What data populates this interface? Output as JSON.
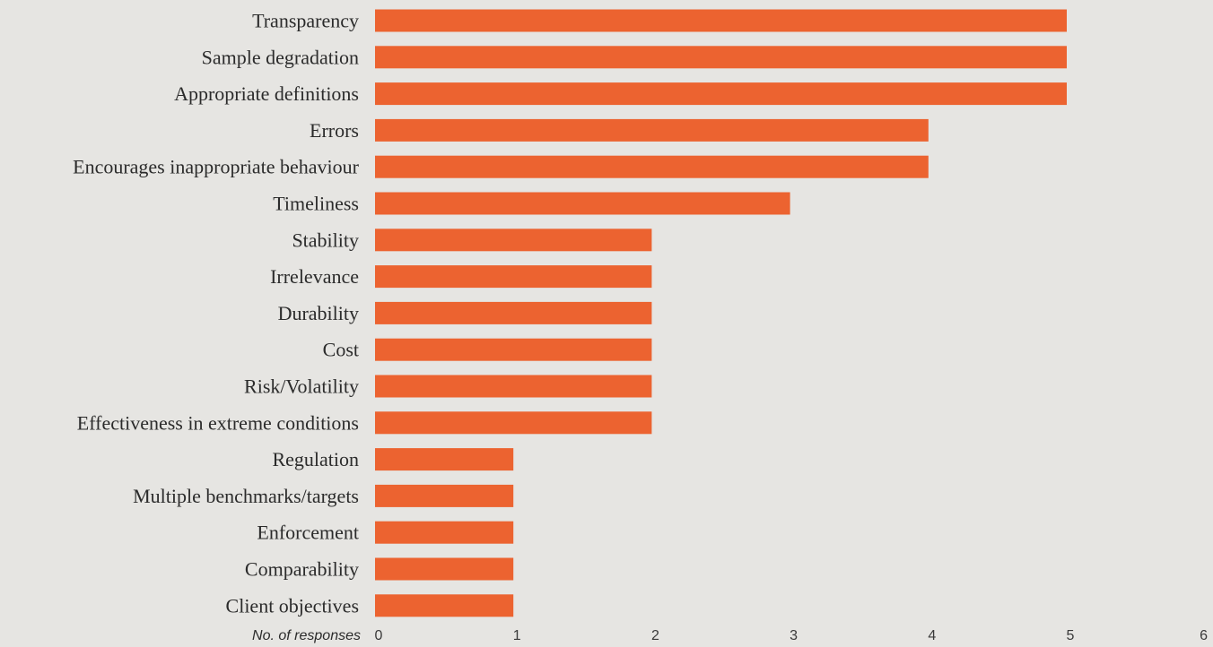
{
  "chart_data": {
    "type": "bar",
    "orientation": "horizontal",
    "categories": [
      "Transparency",
      "Sample degradation",
      "Appropriate definitions",
      "Errors",
      "Encourages inappropriate behaviour",
      "Timeliness",
      "Stability",
      "Irrelevance",
      "Durability",
      "Cost",
      "Risk/Volatility",
      "Effectiveness in extreme conditions",
      "Regulation",
      "Multiple benchmarks/targets",
      "Enforcement",
      "Comparability",
      "Client objectives"
    ],
    "values": [
      5,
      5,
      5,
      4,
      4,
      3,
      2,
      2,
      2,
      2,
      2,
      2,
      1,
      1,
      1,
      1,
      1
    ],
    "xlabel": "No. of responses",
    "ylabel": "",
    "title": "",
    "xlim": [
      0,
      6
    ],
    "x_ticks": [
      0,
      1,
      2,
      3,
      4,
      5,
      6
    ],
    "grid": false,
    "legend": "none",
    "bar_color": "#ec6330",
    "background_color": "#e6e5e2"
  }
}
